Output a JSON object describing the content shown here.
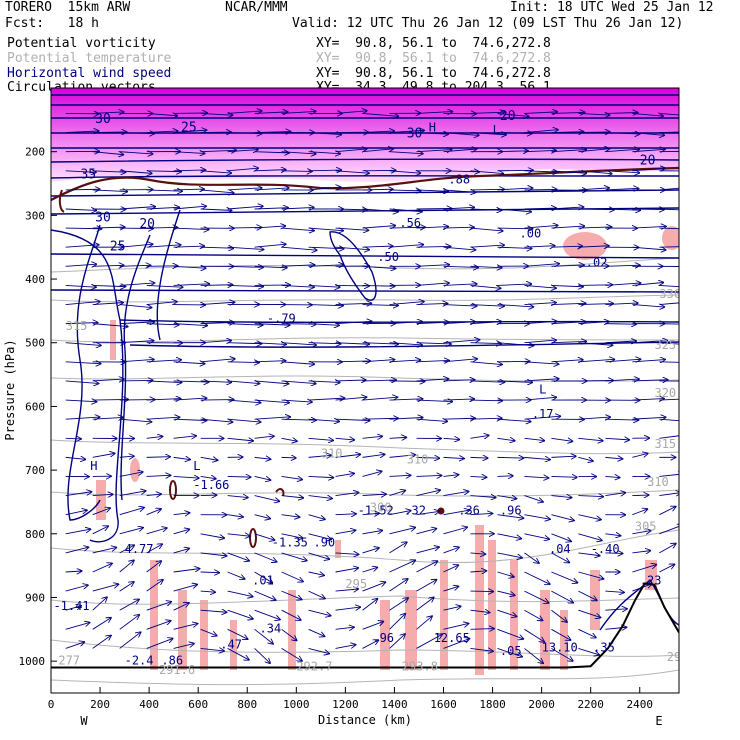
{
  "header": {
    "model": "TORERO  15km ARW",
    "org": "NCAR/MMM",
    "init": "Init: 18 UTC Wed 25 Jan 12",
    "fcst": "Fcst:   18 h",
    "valid": "Valid: 12 UTC Thu 26 Jan 12 (09 LST Thu 26 Jan 12)"
  },
  "legend": [
    {
      "label": "Potential vorticity",
      "xy": "XY=  90.8, 56.1 to  74.6,272.8",
      "color": "#000000"
    },
    {
      "label": "Potential temperature",
      "xy": "XY=  90.8, 56.1 to  74.6,272.8",
      "color": "#b0b0b0"
    },
    {
      "label": "Horizontal wind speed",
      "xy": "XY=  90.8, 56.1 to  74.6,272.8",
      "color": "#000080"
    },
    {
      "label": "Circulation vectors",
      "xy": "XY=  34.3, 49.8 to 204.3, 56.1",
      "color": "#000000"
    }
  ],
  "colors": {
    "wind_contour": "#000080",
    "theta_contour": "#b4b4b4",
    "pv_fill_high": "#e000e0",
    "pv_fill_low": "#f4a8a8",
    "pv_contour": "#5a1010",
    "terrain": "#000000"
  },
  "chart_data": {
    "type": "cross-section",
    "xlabel": "Distance (km)",
    "ylabel": "Pressure (hPa)",
    "xlim": [
      0,
      2560
    ],
    "ylim": [
      1050,
      100
    ],
    "x_ticks": [
      0,
      200,
      400,
      600,
      800,
      1000,
      1200,
      1400,
      1600,
      1800,
      2000,
      2200,
      2400
    ],
    "y_ticks": [
      200,
      300,
      400,
      500,
      600,
      700,
      800,
      900,
      1000
    ],
    "x_tick_labels": [
      "0",
      "200",
      "400",
      "600",
      "800",
      "1000",
      "1200",
      "1400",
      "1600",
      "1800",
      "2000",
      "2200",
      "2400"
    ],
    "y_tick_labels": [
      "200",
      "300",
      "400",
      "500",
      "600",
      "700",
      "800",
      "900",
      "1000"
    ],
    "end_labels": {
      "left": "W",
      "right": "E"
    },
    "terrain_surface": [
      {
        "x": 0,
        "p": 1010
      },
      {
        "x": 2100,
        "p": 1010
      },
      {
        "x": 2200,
        "p": 1008
      },
      {
        "x": 2270,
        "p": 980
      },
      {
        "x": 2330,
        "p": 945
      },
      {
        "x": 2380,
        "p": 905
      },
      {
        "x": 2420,
        "p": 878
      },
      {
        "x": 2460,
        "p": 880
      },
      {
        "x": 2500,
        "p": 915
      },
      {
        "x": 2560,
        "p": 955
      }
    ],
    "wind_speed_labels": [
      {
        "text": "30",
        "x": 180,
        "p": 155
      },
      {
        "text": "25",
        "x": 530,
        "p": 168
      },
      {
        "text": "35",
        "x": 120,
        "p": 242
      },
      {
        "text": "30",
        "x": 180,
        "p": 310
      },
      {
        "text": "20",
        "x": 360,
        "p": 320
      },
      {
        "text": "25",
        "x": 240,
        "p": 355
      },
      {
        "text": "20",
        "x": 1830,
        "p": 150
      },
      {
        "text": "30",
        "x": 1450,
        "p": 178
      },
      {
        "text": "20",
        "x": 2400,
        "p": 220
      }
    ],
    "theta_labels": [
      {
        "text": "330",
        "x": 2480,
        "p": 430
      },
      {
        "text": "325",
        "x": 2460,
        "p": 510
      },
      {
        "text": "320",
        "x": 2460,
        "p": 585
      },
      {
        "text": "315",
        "x": 2460,
        "p": 665
      },
      {
        "text": "310",
        "x": 1100,
        "p": 680
      },
      {
        "text": "310",
        "x": 1450,
        "p": 690
      },
      {
        "text": "305",
        "x": 2380,
        "p": 795
      },
      {
        "text": "310",
        "x": 2430,
        "p": 725
      },
      {
        "text": "300",
        "x": 1300,
        "p": 765
      },
      {
        "text": "295",
        "x": 1200,
        "p": 885
      },
      {
        "text": "291.6",
        "x": 440,
        "p": 1020
      },
      {
        "text": "292.7",
        "x": 1000,
        "p": 1015
      },
      {
        "text": "293.8",
        "x": 1430,
        "p": 1015
      },
      {
        "text": "277",
        "x": 30,
        "p": 1005
      },
      {
        "text": "290",
        "x": 2510,
        "p": 1000
      },
      {
        "text": "315",
        "x": 60,
        "p": 480
      }
    ],
    "extrema_labels": [
      {
        "text": "H",
        "x": 1540,
        "p": 168
      },
      {
        "text": "L",
        "x": 1800,
        "p": 172
      },
      {
        "text": ".88",
        "x": 1620,
        "p": 250
      },
      {
        "text": ".56",
        "x": 1420,
        "p": 318
      },
      {
        "text": ".00",
        "x": 1910,
        "p": 335
      },
      {
        "text": ".02",
        "x": 2180,
        "p": 380
      },
      {
        "text": ".50",
        "x": 1330,
        "p": 372
      },
      {
        "text": "-.79",
        "x": 880,
        "p": 468
      },
      {
        "text": "L",
        "x": 1990,
        "p": 580
      },
      {
        "text": ".17",
        "x": 1960,
        "p": 618
      },
      {
        "text": "H",
        "x": 160,
        "p": 700
      },
      {
        "text": "L",
        "x": 580,
        "p": 700
      },
      {
        "text": "-1.66",
        "x": 580,
        "p": 730
      },
      {
        "text": "-1.52",
        "x": 1250,
        "p": 770
      },
      {
        "text": ".32",
        "x": 1440,
        "p": 770
      },
      {
        "text": ".36",
        "x": 1660,
        "p": 770
      },
      {
        "text": ".96",
        "x": 1830,
        "p": 770
      },
      {
        "text": "-1.35",
        "x": 900,
        "p": 820
      },
      {
        "text": ".90",
        "x": 1070,
        "p": 820
      },
      {
        "text": "4.77",
        "x": 300,
        "p": 830
      },
      {
        "text": ".01",
        "x": 820,
        "p": 880
      },
      {
        "text": ".04",
        "x": 2030,
        "p": 830
      },
      {
        "text": "-.40",
        "x": 2200,
        "p": 830
      },
      {
        "text": "-1.41",
        "x": 10,
        "p": 920
      },
      {
        "text": ".47",
        "x": 690,
        "p": 980
      },
      {
        "text": ".34",
        "x": 850,
        "p": 955
      },
      {
        "text": ".96",
        "x": 1310,
        "p": 970
      },
      {
        "text": "12.65",
        "x": 1560,
        "p": 970
      },
      {
        "text": ".05",
        "x": 1830,
        "p": 990
      },
      {
        "text": "13.10",
        "x": 2000,
        "p": 985
      },
      {
        "text": ".35",
        "x": 2210,
        "p": 985
      },
      {
        "text": ".23",
        "x": 2400,
        "p": 880
      },
      {
        "text": "-2.4",
        "x": 300,
        "p": 1005
      },
      {
        "text": ".86",
        "x": 450,
        "p": 1005
      }
    ]
  }
}
